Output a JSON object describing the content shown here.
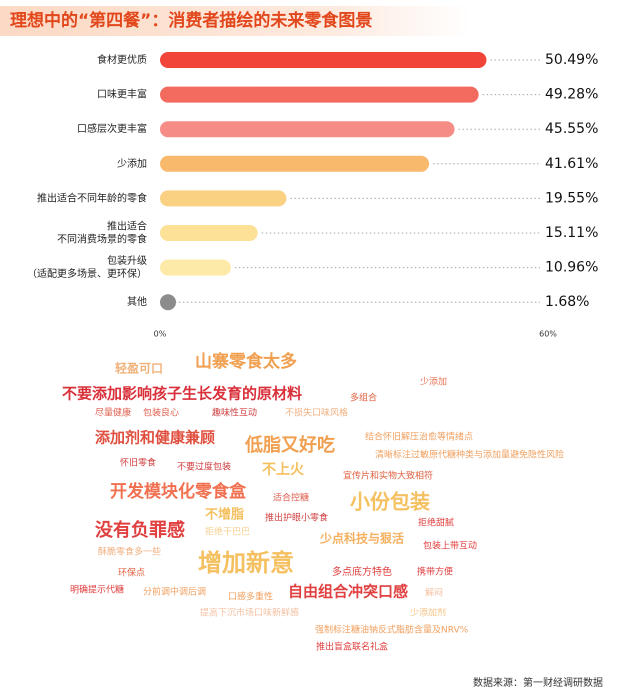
{
  "chart_data": {
    "type": "bar",
    "orientation": "horizontal",
    "title": "理想中的“第四餐”：消费者描绘的未来零食图景",
    "categories": [
      "食材更优质",
      "口味更丰富",
      "口感层次更丰富",
      "少添加",
      "推出适合不同年龄的零食",
      "推出适合\n不同消费场景的零食",
      "包装升级\n（适配更多场景、更环保）",
      "其他"
    ],
    "values": [
      50.49,
      49.28,
      45.55,
      41.61,
      19.55,
      15.11,
      10.96,
      1.68
    ],
    "value_labels": [
      "50.49%",
      "49.28%",
      "45.55%",
      "41.61%",
      "19.55%",
      "15.11%",
      "10.96%",
      "1.68%"
    ],
    "colors": [
      "#f2453a",
      "#f36a5f",
      "#f58c86",
      "#f8b96c",
      "#fad083",
      "#fce196",
      "#fdeaa8",
      "#8c8c8c"
    ],
    "xlim": [
      0,
      60
    ],
    "xticks": [
      {
        "value": 0,
        "label": "0%"
      },
      {
        "value": 60,
        "label": "60%"
      }
    ],
    "word_cloud": [
      "轻盈可口",
      "山寨零食太多",
      "少添加",
      "不要添加影响孩子生长发育的原材料",
      "多组合",
      "尽量健康",
      "包装良心",
      "趣味性互动",
      "不损失口味风格",
      "添加剂和健康兼顾",
      "低脂又好吃",
      "结合怀旧解压治愈等情绪点",
      "清晰标注过敏原代糖种类与添加量避免隐性风险",
      "怀旧零食",
      "不要过度包装",
      "不上火",
      "宣传片和实物大致相符",
      "开发模块化零食盒",
      "适合控糖",
      "小份包装",
      "拒绝甜腻",
      "不增脂",
      "推出护眼小零食",
      "没有负罪感",
      "拒绝干巴巴",
      "少点科技与狠活",
      "包装上带互动",
      "酥脆零食多一些",
      "增加新意",
      "环保点",
      "多点底方特色",
      "携带方便",
      "明确提示代糖",
      "分前调中调后调",
      "口感多重性",
      "自由组合冲突口感",
      "提高下沉市场口味新鲜感",
      "少添加剂",
      "强制标注糖油钠反式脂肪含量及NRV%",
      "推出盲盒联名礼盒",
      "解闷"
    ],
    "source": "数据来源：第一财经调研数据"
  }
}
